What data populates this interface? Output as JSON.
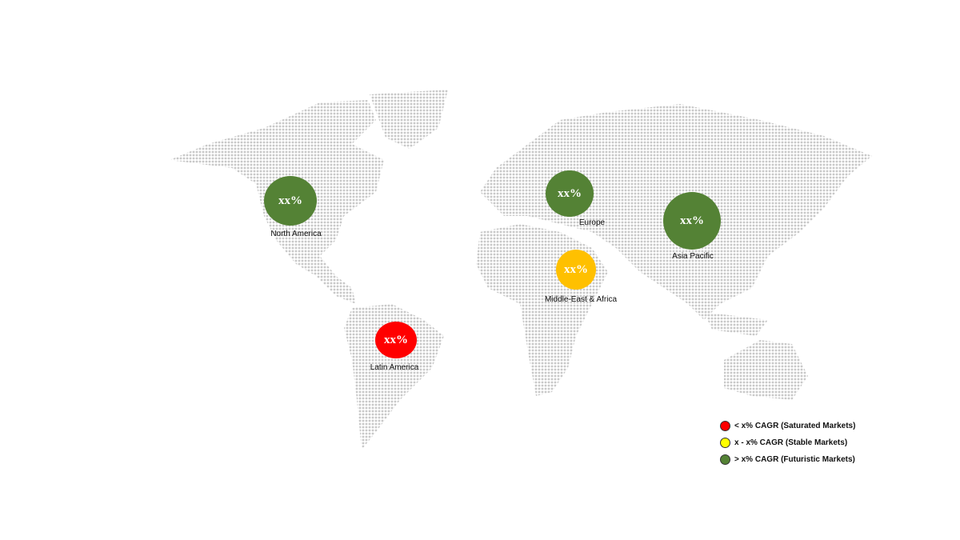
{
  "colors": {
    "saturated": "#ff0000",
    "stable": "#ffc000",
    "futuristic": "#548235",
    "legend_stable": "#ffff00",
    "map_dots": "#c8c8c8"
  },
  "regions": [
    {
      "name": "North America",
      "value": "xx%",
      "category": "futuristic"
    },
    {
      "name": "Europe",
      "value": "xx%",
      "category": "futuristic"
    },
    {
      "name": "Asia Pacific",
      "value": "xx%",
      "category": "futuristic"
    },
    {
      "name": "Middle-East & Africa",
      "value": "xx%",
      "category": "stable"
    },
    {
      "name": "Latin America",
      "value": "xx%",
      "category": "saturated"
    }
  ],
  "legend": [
    {
      "label": "< x% CAGR (Saturated Markets)",
      "color": "#ff0000"
    },
    {
      "label": "x - x% CAGR (Stable Markets)",
      "color": "#ffff00"
    },
    {
      "label": "> x% CAGR (Futuristic Markets)",
      "color": "#548235"
    }
  ]
}
